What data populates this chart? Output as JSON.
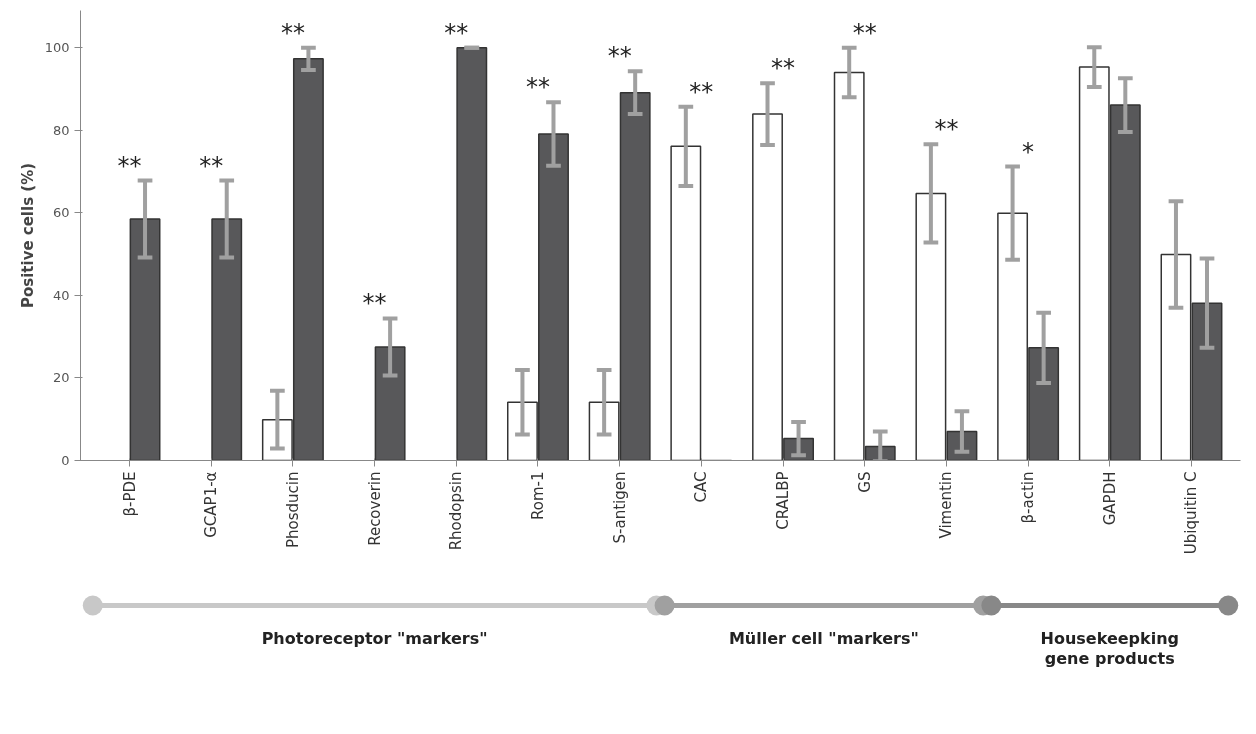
{
  "chart_data": {
    "type": "bar",
    "ylabel": "Positive cells (%)",
    "categories": [
      "β-PDE",
      "GCAP1-α",
      "Phosducin",
      "Recoverin",
      "Rhodopsin",
      "Rom-1",
      "S-antigen",
      "CAC",
      "CRALBP",
      "GS",
      "Vimentin",
      "β-actin",
      "GAPDH",
      "Ubiquitin C"
    ],
    "series": [
      {
        "color": "#ffffff",
        "values": [
          0,
          0,
          9.9,
          0,
          0,
          14.1,
          14.1,
          76.1,
          83.9,
          94,
          64.7,
          59.9,
          95.3,
          49.9
        ],
        "errors": [
          null,
          null,
          7,
          null,
          null,
          7.8,
          7.8,
          9.6,
          7.5,
          6,
          11.9,
          11.3,
          4.8,
          12.9
        ]
      },
      {
        "color": "#58585a",
        "values": [
          58.5,
          58.5,
          97.3,
          27.5,
          100,
          79.1,
          89.1,
          0,
          5.3,
          3.4,
          7,
          27.3,
          86.1,
          38.1
        ],
        "errors": [
          9.3,
          9.3,
          2.7,
          6.9,
          0,
          7.7,
          5.2,
          null,
          4,
          3.6,
          4.9,
          8.5,
          6.5,
          10.8
        ]
      }
    ],
    "ylim": [
      0,
      109
    ],
    "yticks": [
      0,
      20,
      40,
      60,
      80,
      100
    ],
    "grid": false,
    "annotations": [
      "**",
      "**",
      "**",
      "**",
      "**",
      "**",
      "**",
      "**",
      "**",
      "**",
      "**",
      "*",
      "Photoreceptor \"markers\"",
      "Müller cell \"markers\"",
      "Housekeepking\ngene products"
    ]
  }
}
